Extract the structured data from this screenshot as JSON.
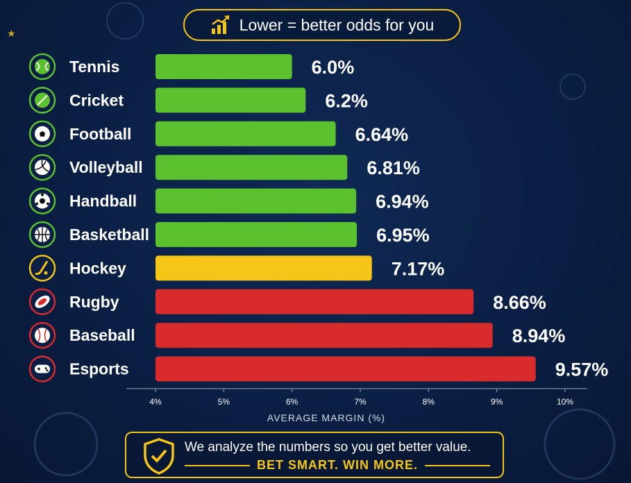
{
  "legend": {
    "text": "Lower = better odds for you",
    "icon": "chart-up-icon"
  },
  "chart_data": {
    "type": "bar",
    "orientation": "horizontal",
    "categories": [
      "Tennis",
      "Cricket",
      "Football",
      "Volleyball",
      "Handball",
      "Basketball",
      "Hockey",
      "Rugby",
      "Baseball",
      "Esports"
    ],
    "values": [
      6.0,
      6.2,
      6.64,
      6.81,
      6.94,
      6.95,
      7.17,
      8.66,
      8.94,
      9.57
    ],
    "value_labels": [
      "6.0%",
      "6.2%",
      "6.64%",
      "6.81%",
      "6.94%",
      "6.95%",
      "7.17%",
      "8.66%",
      "8.94%",
      "9.57%"
    ],
    "icons": [
      "tennis-ball-icon",
      "cricket-ball-icon",
      "football-icon",
      "volleyball-icon",
      "handball-icon",
      "basketball-icon",
      "hockey-stick-icon",
      "rugby-ball-icon",
      "baseball-icon",
      "gamepad-icon"
    ],
    "bar_colors": [
      "#5bc12f",
      "#5bc12f",
      "#5bc12f",
      "#5bc12f",
      "#5bc12f",
      "#5bc12f",
      "#f5c518",
      "#d92b2b",
      "#d92b2b",
      "#d92b2b"
    ],
    "xlabel": "AVERAGE MARGIN (%)",
    "xticks": [
      "4%",
      "5%",
      "6%",
      "7%",
      "8%",
      "9%",
      "10%"
    ],
    "xlim": [
      4,
      10
    ],
    "grid": false,
    "title": ""
  },
  "footer": {
    "line1": "We analyze the numbers so you get better value.",
    "line2": "BET SMART. WIN MORE.",
    "icon": "shield-check-icon"
  },
  "colors": {
    "accent": "#f5c518",
    "background": "#0b1f44"
  }
}
